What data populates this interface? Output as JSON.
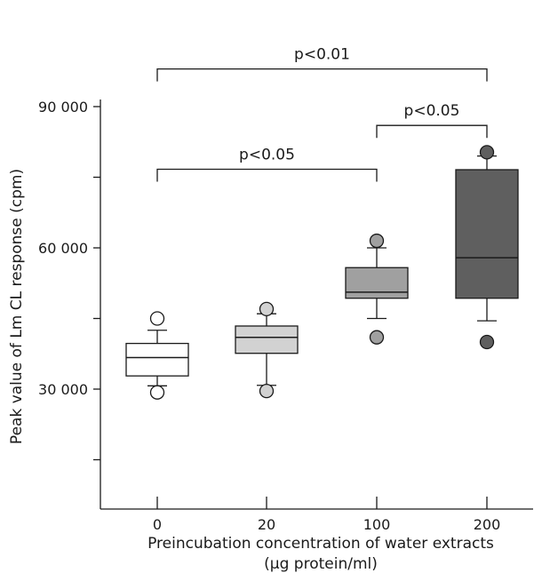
{
  "chart_data": {
    "type": "box",
    "xlabel_line1": "Preincubation concentration of water extracts",
    "xlabel_line2": "(µg protein/ml)",
    "ylabel": "Peak value of Lm CL response (cpm)",
    "ylim": [
      0,
      90000
    ],
    "y_ticks": [
      30000,
      60000,
      90000
    ],
    "y_tick_labels": [
      "30 000",
      "60 000",
      "90 000"
    ],
    "categories": [
      "0",
      "20",
      "100",
      "200"
    ],
    "boxes": [
      {
        "category": "0",
        "q1": 32800,
        "median": 36700,
        "q3": 39700,
        "whisker_low": 30700,
        "whisker_high": 42500,
        "outliers": [
          29300,
          45000
        ],
        "fill": "#ffffff"
      },
      {
        "category": "20",
        "q1": 37600,
        "median": 41000,
        "q3": 43400,
        "whisker_low": 30800,
        "whisker_high": 46000,
        "outliers": [
          29600,
          47000
        ],
        "fill": "#d2d2d2"
      },
      {
        "category": "100",
        "q1": 49300,
        "median": 50600,
        "q3": 55800,
        "whisker_low": 45000,
        "whisker_high": 60000,
        "outliers": [
          41000,
          61500
        ],
        "fill": "#a0a0a0"
      },
      {
        "category": "200",
        "q1": 49300,
        "median": 57900,
        "q3": 76600,
        "whisker_low": 44500,
        "whisker_high": 79500,
        "outliers": [
          40000,
          80300
        ],
        "fill": "#5f5f5f"
      }
    ],
    "significance": [
      {
        "from": "0",
        "to": 200,
        "label": "p<0.01",
        "level": 98000
      },
      {
        "from": "100",
        "to": 200,
        "label": "p<0.05",
        "level": 86000
      },
      {
        "from": "0",
        "to": 100,
        "label": "p<0.05",
        "level": 76700
      }
    ]
  }
}
